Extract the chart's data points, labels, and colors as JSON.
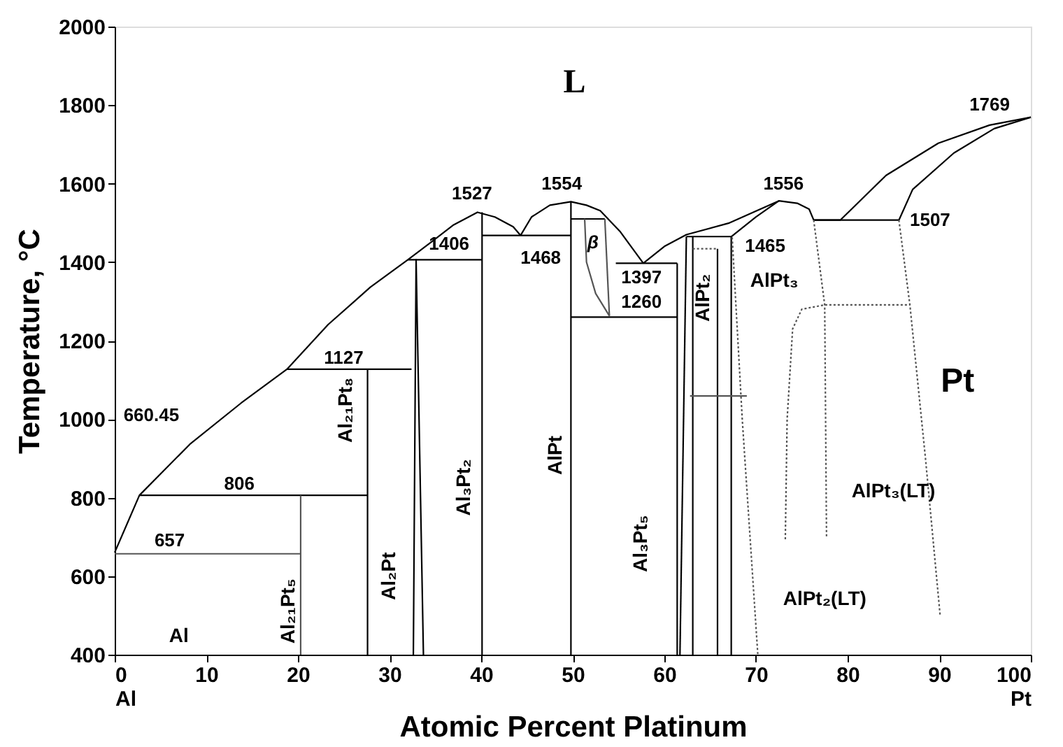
{
  "chart_data": {
    "type": "line",
    "xlabel": "Atomic Percent Platinum",
    "ylabel": "Temperature, °C",
    "xlim": [
      0,
      100
    ],
    "ylim": [
      400,
      2000
    ],
    "xticks": [
      {
        "value": 0,
        "label": "0\nAl"
      },
      10,
      20,
      30,
      40,
      50,
      60,
      70,
      80,
      90,
      {
        "value": 100,
        "label": "100\nPt"
      }
    ],
    "yticks": [
      400,
      600,
      800,
      1000,
      1200,
      1400,
      1600,
      1800,
      2000
    ],
    "grid": false,
    "marker": "none",
    "series": [
      {
        "color": "#000000",
        "line_style": "solid",
        "x": [
          0,
          2.7,
          8.2,
          13.8,
          18.8,
          23.3,
          27.9,
          32,
          34.6,
          37,
          39.6,
          41.5,
          43.5,
          44.3
        ],
        "values": [
          660.45,
          806,
          936,
          1041,
          1127,
          1241,
          1336,
          1406,
          1452,
          1495,
          1527,
          1515,
          1490,
          1468
        ]
      },
      {
        "color": "#000000",
        "line_style": "solid",
        "x": [
          44.3,
          45.5,
          47.5,
          49.8,
          51.5,
          53,
          55.2,
          57.7
        ],
        "values": [
          1468,
          1515,
          1545,
          1554,
          1545,
          1531,
          1477,
          1397
        ]
      },
      {
        "color": "#000000",
        "line_style": "solid",
        "x": [
          57.7,
          60,
          62.4,
          67,
          70,
          72.5,
          74.5,
          75.8,
          76.3
        ],
        "values": [
          1397,
          1440,
          1470,
          1499,
          1530,
          1556,
          1550,
          1535,
          1507
        ]
      },
      {
        "color": "#000000",
        "line_style": "solid",
        "x": [
          67.3,
          70,
          72.5
        ],
        "values": [
          1465,
          1515,
          1556
        ]
      },
      {
        "color": "#000000",
        "line_style": "solid",
        "x": [
          76.3,
          79.2,
          84.2,
          89.9,
          95.5,
          100
        ],
        "values": [
          1507,
          1507,
          1621,
          1703,
          1749,
          1769
        ]
      },
      {
        "color": "#000000",
        "line_style": "solid",
        "x": [
          85.6,
          87.1,
          91.6,
          96,
          100
        ],
        "values": [
          1507,
          1585,
          1678,
          1740,
          1769
        ]
      },
      {
        "color": "#000000",
        "line_style": "solid",
        "x": [
          76.3,
          85.6
        ],
        "values": [
          1507,
          1507
        ]
      },
      {
        "color": "#000000",
        "line_style": "solid",
        "x": [
          2.7,
          27.6
        ],
        "values": [
          806,
          806
        ]
      },
      {
        "color": "#555555",
        "line_style": "solid",
        "x": [
          0,
          20.3
        ],
        "values": [
          657,
          657
        ]
      },
      {
        "color": "#000000",
        "line_style": "solid",
        "x": [
          18.8,
          32.4
        ],
        "values": [
          1127,
          1127
        ]
      },
      {
        "color": "#000000",
        "line_style": "solid",
        "x": [
          32,
          40.1
        ],
        "values": [
          1406,
          1406
        ]
      },
      {
        "color": "#000000",
        "line_style": "solid",
        "x": [
          40.1,
          49.8
        ],
        "values": [
          1468,
          1468
        ]
      },
      {
        "color": "#000000",
        "line_style": "solid",
        "x": [
          49.8,
          61.4
        ],
        "values": [
          1260,
          1260
        ]
      },
      {
        "color": "#000000",
        "line_style": "solid",
        "x": [
          54.7,
          61.4
        ],
        "values": [
          1397,
          1397
        ]
      },
      {
        "color": "#000000",
        "line_style": "solid",
        "x": [
          62.4,
          67.3
        ],
        "values": [
          1465,
          1465
        ]
      },
      {
        "color": "#555555",
        "line_style": "solid",
        "x": [
          20.3,
          20.3
        ],
        "values": [
          400,
          806
        ]
      },
      {
        "color": "#000000",
        "line_style": "solid",
        "x": [
          27.6,
          27.6
        ],
        "values": [
          400,
          1127
        ]
      },
      {
        "color": "#000000",
        "line_style": "solid",
        "x": [
          32.6,
          32.9,
          33.7
        ],
        "values": [
          400,
          1406,
          400
        ]
      },
      {
        "color": "#000000",
        "line_style": "solid",
        "x": [
          40.1,
          40.1
        ],
        "values": [
          400,
          1527
        ]
      },
      {
        "color": "#000000",
        "line_style": "solid",
        "x": [
          49.8,
          49.8
        ],
        "values": [
          400,
          1554
        ]
      },
      {
        "color": "#000000",
        "line_style": "solid",
        "x": [
          49.8,
          53.5
        ],
        "values": [
          1510,
          1510
        ]
      },
      {
        "color": "#555555",
        "line_style": "solid",
        "x": [
          51.3,
          51.5,
          52.5,
          54
        ],
        "values": [
          1510,
          1400,
          1320,
          1263
        ]
      },
      {
        "color": "#555555",
        "line_style": "solid",
        "x": [
          53.5,
          54
        ],
        "values": [
          1510,
          1263
        ]
      },
      {
        "color": "#000000",
        "line_style": "solid",
        "x": [
          61.4,
          61.4
        ],
        "values": [
          400,
          1397
        ]
      },
      {
        "color": "#000000",
        "line_style": "solid",
        "x": [
          61.7,
          62.4
        ],
        "values": [
          400,
          1465
        ]
      },
      {
        "color": "#000000",
        "line_style": "solid",
        "x": [
          63.1,
          63.1
        ],
        "values": [
          400,
          1465
        ]
      },
      {
        "color": "#000000",
        "line_style": "solid",
        "x": [
          65.8,
          65.8
        ],
        "values": [
          400,
          1434
        ]
      },
      {
        "color": "#000000",
        "line_style": "solid",
        "x": [
          67.3,
          67.3
        ],
        "values": [
          400,
          1465
        ]
      },
      {
        "color": "#555555",
        "line_style": "solid",
        "x": [
          62.8,
          69
        ],
        "values": [
          1059,
          1059
        ]
      },
      {
        "color": "#555555",
        "line_style": "dotted",
        "x": [
          63.1,
          65.8
        ],
        "values": [
          1434,
          1434
        ]
      },
      {
        "color": "#555555",
        "line_style": "dotted",
        "x": [
          67.4,
          68.5,
          70.2
        ],
        "values": [
          1463,
          1000,
          400
        ]
      },
      {
        "color": "#555555",
        "line_style": "dotted",
        "x": [
          76.3,
          77.5,
          77.7
        ],
        "values": [
          1507,
          1291,
          700
        ]
      },
      {
        "color": "#555555",
        "line_style": "dotted",
        "x": [
          85.6,
          86.8,
          88.5,
          90.1
        ],
        "values": [
          1507,
          1291,
          900,
          500
        ]
      },
      {
        "color": "#555555",
        "line_style": "dotted",
        "x": [
          73.2,
          73.4,
          74,
          75,
          77.5,
          86.8
        ],
        "values": [
          694,
          1000,
          1230,
          1280,
          1291,
          1291
        ]
      }
    ],
    "annotations": [
      "L",
      "660.45",
      "806",
      "657",
      "1127",
      "1406",
      "1527",
      "1468",
      "1554",
      "β",
      "1397",
      "1260",
      "1556",
      "1465",
      "AlPt₃",
      "1507",
      "1769",
      "Pt",
      "AlPt₃(LT)",
      "AlPt₂(LT)",
      "Al",
      "Al₂₁Pt₈",
      "Al₂Pt",
      "Al₃Pt₂",
      "AlPt",
      "Al₃Pt₅",
      "AlPt₂",
      "Al₂₁Pt₅"
    ]
  }
}
